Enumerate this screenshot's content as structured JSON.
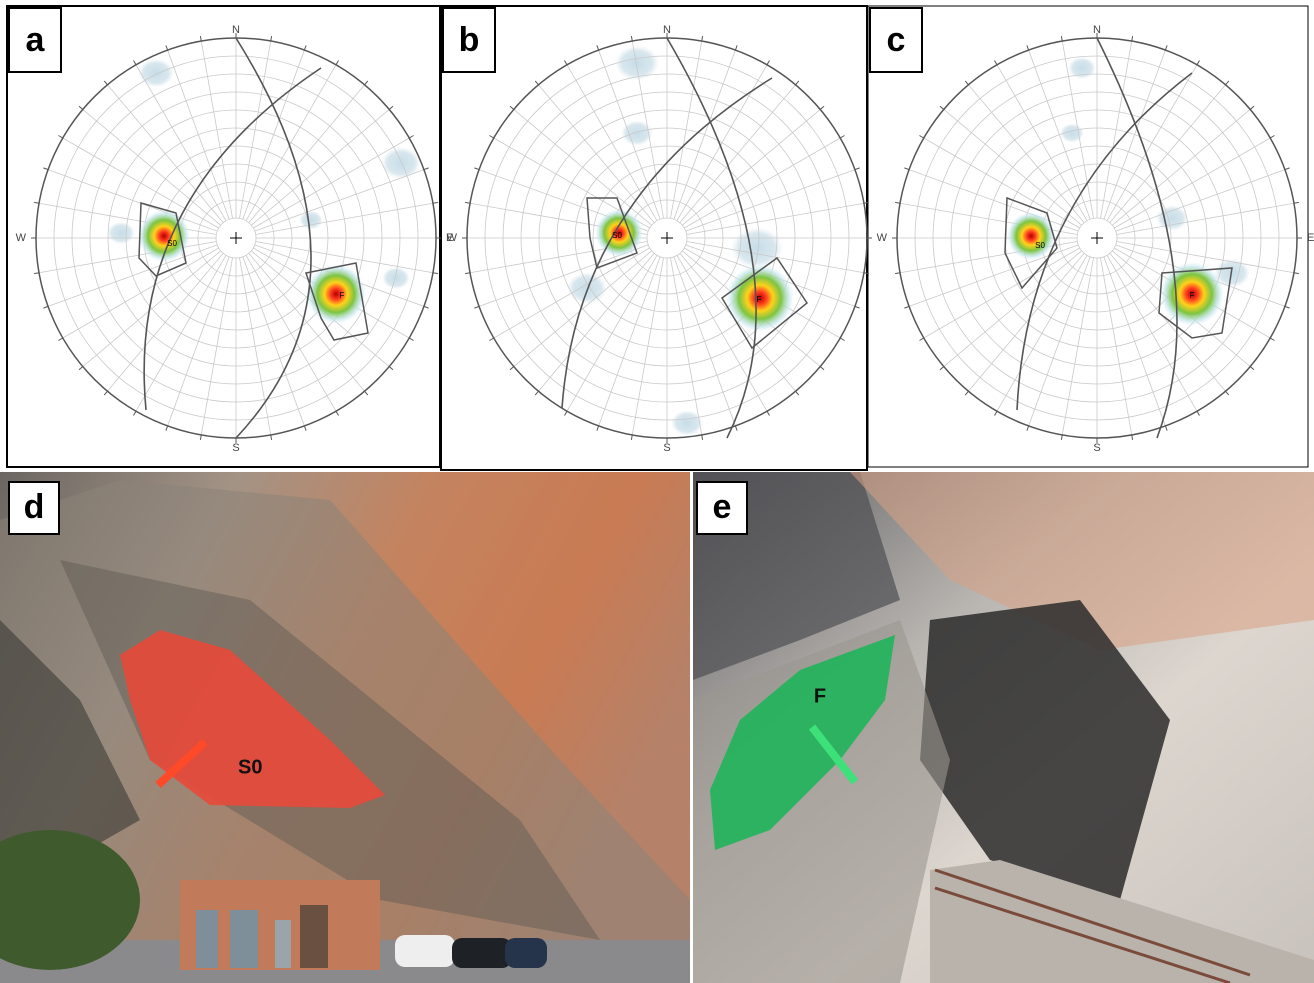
{
  "panels": [
    {
      "label": "a",
      "north": "N",
      "south": "S",
      "west": "W",
      "east": "E",
      "pole_labels": [
        "S0",
        "F"
      ]
    },
    {
      "label": "b",
      "north": "N",
      "south": "S",
      "west": "W",
      "pole_labels": [
        "S0",
        "F"
      ]
    },
    {
      "label": "c",
      "north": "N",
      "south": "S",
      "west": "W",
      "east": "E",
      "pole_labels": [
        "S0",
        "F"
      ]
    }
  ],
  "photos": [
    {
      "label": "d",
      "annotation": "S0"
    },
    {
      "label": "e",
      "annotation": "F"
    }
  ]
}
